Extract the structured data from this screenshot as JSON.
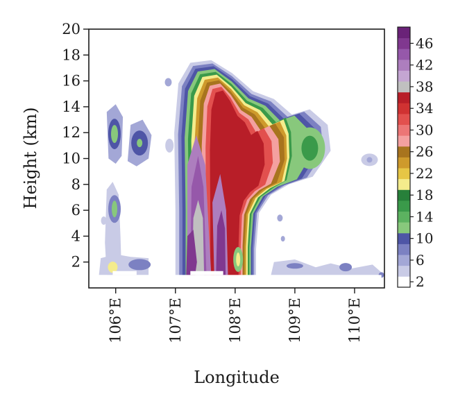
{
  "chart_data": {
    "type": "heatmap",
    "title": "",
    "xlabel": "Longitude",
    "ylabel": "Height (km)",
    "xlim": [
      105.55,
      110.5
    ],
    "ylim": [
      0,
      20
    ],
    "x_ticks": [
      106,
      107,
      108,
      109,
      110
    ],
    "x_tick_labels": [
      "106°E",
      "107°E",
      "108°E",
      "109°E",
      "110°E"
    ],
    "y_ticks": [
      2,
      4,
      6,
      8,
      10,
      12,
      14,
      16,
      18,
      20
    ],
    "y_tick_labels": [
      "2",
      "4",
      "6",
      "8",
      "10",
      "12",
      "14",
      "16",
      "18",
      "20"
    ],
    "data_floor_km": 1,
    "colorbar": {
      "levels": [
        2,
        4,
        6,
        8,
        10,
        12,
        14,
        16,
        18,
        20,
        22,
        24,
        26,
        28,
        30,
        32,
        34,
        36,
        38,
        40,
        42,
        44,
        46,
        48
      ],
      "tick_labels": [
        "2",
        "6",
        "10",
        "14",
        "18",
        "22",
        "26",
        "30",
        "34",
        "38",
        "42",
        "46"
      ],
      "colors": [
        "#ffffff",
        "#c9cbe6",
        "#a3a7d6",
        "#7c81c2",
        "#4e55a6",
        "#88c87c",
        "#5cb260",
        "#3a9a4a",
        "#27803a",
        "#f4ec8c",
        "#e6c645",
        "#ce9a2c",
        "#a8741e",
        "#f4a0a0",
        "#ec7676",
        "#e2504e",
        "#d03232",
        "#b81e28",
        "#c0c0c0",
        "#c4a6d2",
        "#ad7ebe",
        "#9658aa",
        "#80388f",
        "#6a2278"
      ]
    },
    "features": [
      {
        "desc": "main convective tower",
        "lon": [
          107.05,
          108.7
        ],
        "top_km": 17.5,
        "max_dbz": 48
      },
      {
        "desc": "anvil extension",
        "lon": [
          108.7,
          109.6
        ],
        "height_km": [
          8,
          14
        ],
        "max_dbz": 16
      },
      {
        "desc": "western isolated cells",
        "lon": [
          105.8,
          106.6
        ],
        "top_km": 13.5,
        "max_dbz": 20
      },
      {
        "desc": "eastern weak echoes",
        "lon": [
          109.0,
          110.5
        ],
        "top_km": 2,
        "max_dbz": 8
      }
    ]
  }
}
